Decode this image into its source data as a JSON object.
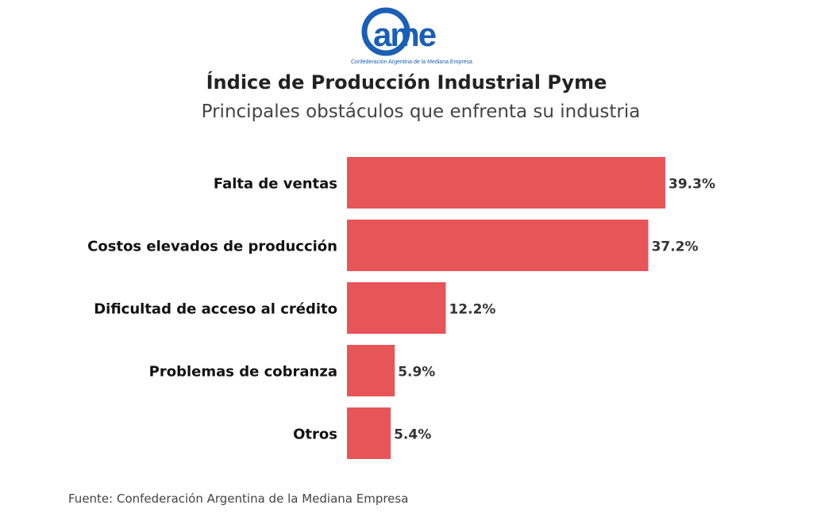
{
  "logo": {
    "text": "came",
    "tagline": "Confederación Argentina de la Mediana Empresa",
    "color": "#1a5fb4"
  },
  "chart_data": {
    "type": "bar",
    "orientation": "horizontal",
    "title": "Índice de Producción Industrial Pyme",
    "subtitle": "Principales obstáculos que enfrenta su industria",
    "categories": [
      "Falta de ventas",
      "Costos elevados de producción",
      "Dificultad de acceso al crédito",
      "Problemas de cobranza",
      "Otros"
    ],
    "values": [
      39.3,
      37.2,
      12.2,
      5.9,
      5.4
    ],
    "value_labels": [
      "39.3%",
      "37.2%",
      "12.2%",
      "5.9%",
      "5.4%"
    ],
    "bar_color": "#e85558",
    "grid": false
  },
  "source": "Fuente: Confederación Argentina de la Mediana Empresa"
}
